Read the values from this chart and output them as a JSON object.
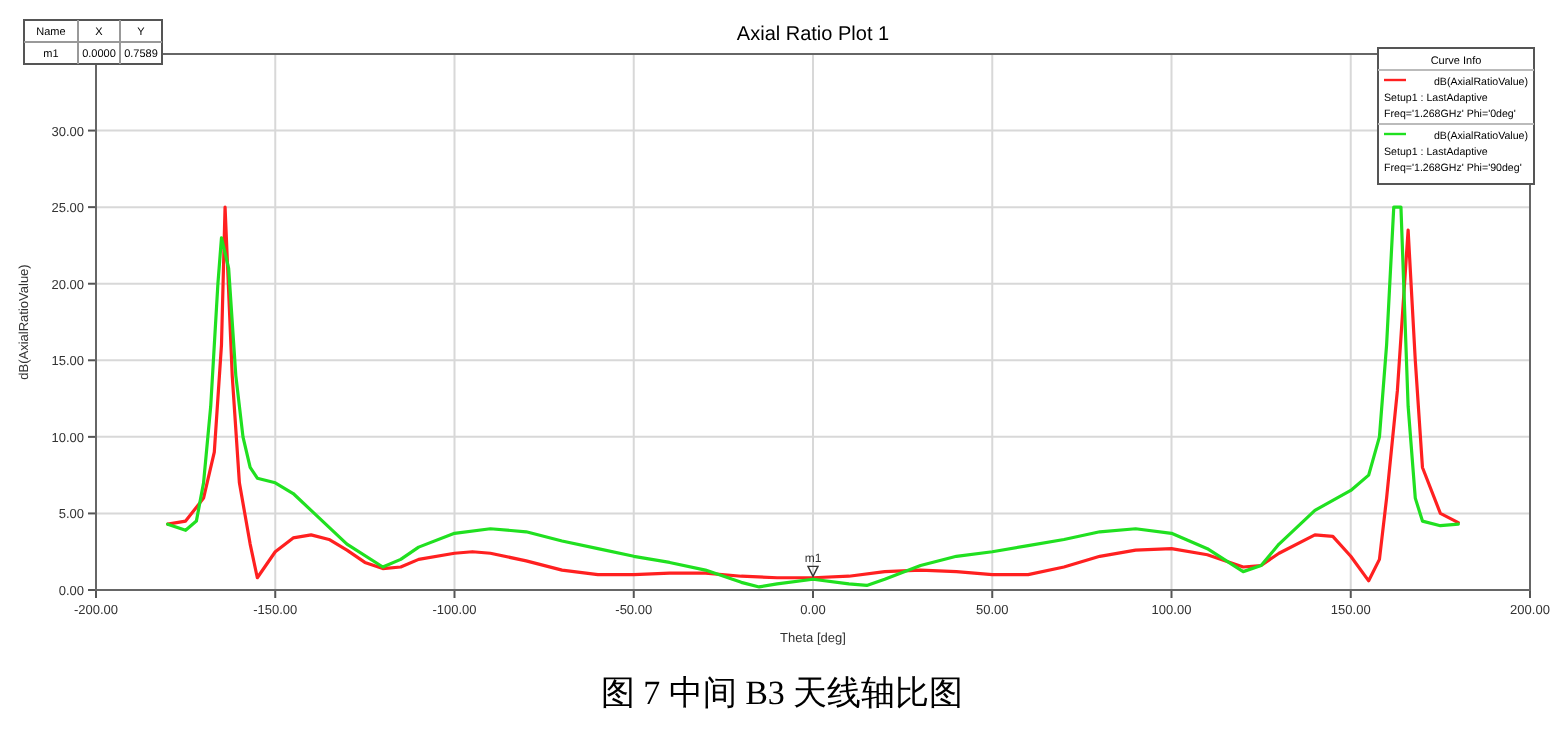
{
  "chart_data": {
    "type": "line",
    "title": "Axial Ratio Plot 1",
    "xlabel": "Theta [deg]",
    "ylabel": "dB(AxialRatioValue)",
    "legend_title": "Curve Info",
    "legend": "top right",
    "grid": true,
    "marker": "none",
    "line_style": "solid",
    "xlim": [
      -200,
      200
    ],
    "xticks": [
      {
        "value": -200,
        "label": "-200.00"
      },
      {
        "value": -150,
        "label": "-150.00"
      },
      {
        "value": -100,
        "label": "-100.00"
      },
      {
        "value": -50,
        "label": "-50.00"
      },
      {
        "value": 0,
        "label": "0.00"
      },
      {
        "value": 50,
        "label": "50.00"
      },
      {
        "value": 100,
        "label": "100.00"
      },
      {
        "value": 150,
        "label": "150.00"
      },
      {
        "value": 200,
        "label": "200.00"
      }
    ],
    "ylim": [
      0,
      35
    ],
    "yticks": [
      {
        "value": 0,
        "label": "0.00"
      },
      {
        "value": 5,
        "label": "5.00"
      },
      {
        "value": 10,
        "label": "10.00"
      },
      {
        "value": 15,
        "label": "15.00"
      },
      {
        "value": 20,
        "label": "20.00"
      },
      {
        "value": 25,
        "label": "25.00"
      },
      {
        "value": 30,
        "label": "30.00"
      }
    ],
    "series": [
      {
        "name": "dB(AxialRatioValue)\nSetup1 : LastAdaptive\nFreq='1.268GHz' Phi='0deg'",
        "color": "#ff2020",
        "x": [
          -180,
          -175,
          -170,
          -167,
          -165,
          -164,
          -162,
          -160,
          -157,
          -155,
          -150,
          -145,
          -140,
          -135,
          -130,
          -125,
          -120,
          -115,
          -110,
          -100,
          -95,
          -90,
          -80,
          -70,
          -60,
          -50,
          -40,
          -30,
          -20,
          -10,
          0,
          10,
          20,
          30,
          40,
          50,
          60,
          70,
          80,
          90,
          100,
          110,
          120,
          125,
          130,
          140,
          145,
          150,
          155,
          158,
          160,
          163,
          166,
          168,
          170,
          175,
          180
        ],
        "values": [
          4.3,
          4.5,
          6,
          9,
          16,
          25,
          14,
          7,
          3,
          0.8,
          2.5,
          3.4,
          3.6,
          3.3,
          2.6,
          1.8,
          1.4,
          1.5,
          2.0,
          2.4,
          2.5,
          2.4,
          1.9,
          1.3,
          1.0,
          1.0,
          1.1,
          1.1,
          0.9,
          0.8,
          0.8,
          0.9,
          1.2,
          1.3,
          1.2,
          1.0,
          1.0,
          1.5,
          2.2,
          2.6,
          2.7,
          2.3,
          1.5,
          1.6,
          2.4,
          3.6,
          3.5,
          2.2,
          0.6,
          2,
          6,
          13,
          23.5,
          15,
          8,
          5,
          4.4
        ]
      },
      {
        "name": "dB(AxialRatioValue)\nSetup1 : LastAdaptive\nFreq='1.268GHz' Phi='90deg'",
        "color": "#20e020",
        "x": [
          -180,
          -175,
          -172,
          -170,
          -168,
          -166,
          -165,
          -163,
          -161,
          -159,
          -157,
          -155,
          -150,
          -145,
          -140,
          -130,
          -120,
          -115,
          -110,
          -100,
          -90,
          -80,
          -70,
          -60,
          -50,
          -40,
          -30,
          -20,
          -15,
          -10,
          0,
          10,
          15,
          20,
          30,
          40,
          50,
          60,
          70,
          80,
          90,
          100,
          110,
          120,
          125,
          130,
          140,
          150,
          155,
          158,
          160,
          162,
          164,
          166,
          168,
          170,
          175,
          180
        ],
        "values": [
          4.3,
          3.9,
          4.5,
          7,
          12,
          20,
          23,
          21,
          14,
          10,
          8,
          7.3,
          7,
          6.3,
          5.2,
          3.0,
          1.5,
          2.0,
          2.8,
          3.7,
          4.0,
          3.8,
          3.2,
          2.7,
          2.2,
          1.8,
          1.3,
          0.5,
          0.2,
          0.4,
          0.7,
          0.4,
          0.3,
          0.7,
          1.6,
          2.2,
          2.5,
          2.9,
          3.3,
          3.8,
          4.0,
          3.7,
          2.7,
          1.2,
          1.6,
          3.0,
          5.2,
          6.5,
          7.5,
          10,
          16,
          25,
          25,
          12,
          6,
          4.5,
          4.2,
          4.3
        ]
      }
    ],
    "annotations": [
      {
        "text": "m1",
        "x": 0,
        "y": 0.7589
      },
      "Name",
      "X",
      "Y",
      "m1",
      "0.0000",
      "0.7589",
      "图 7 中间 B3 天线轴比图"
    ]
  }
}
